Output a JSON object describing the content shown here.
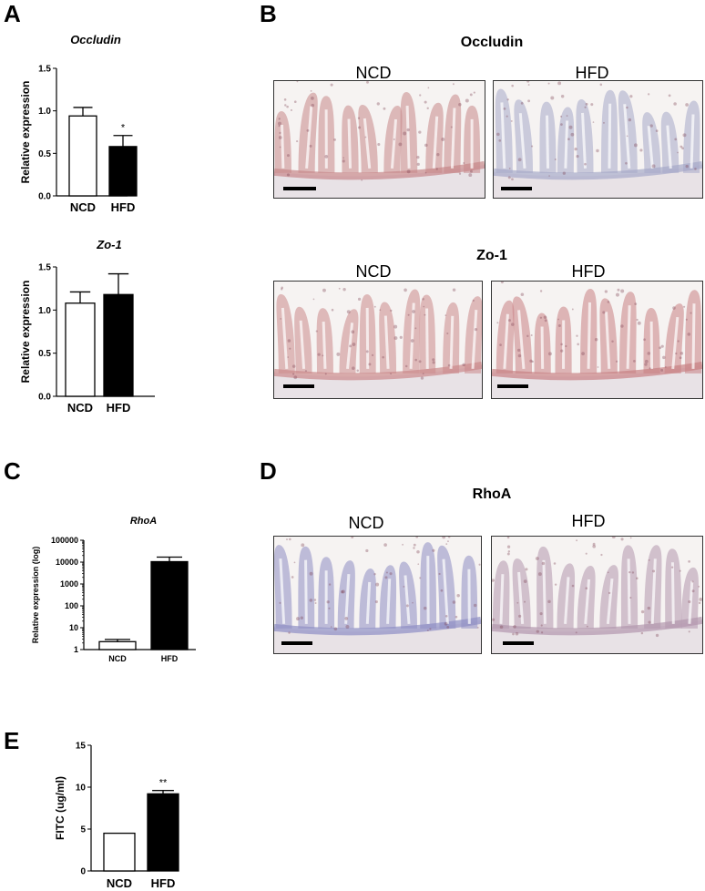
{
  "panels": {
    "A": "A",
    "B": "B",
    "C": "C",
    "D": "D",
    "E": "E"
  },
  "chart_data": [
    {
      "id": "occludin",
      "type": "bar",
      "title": "Occludin",
      "ylabel": "Relative expression",
      "categories": [
        "NCD",
        "HFD"
      ],
      "values": [
        0.94,
        0.58
      ],
      "errors": [
        0.1,
        0.13
      ],
      "annotations": [
        "",
        "*"
      ],
      "ylim": [
        0,
        1.5
      ],
      "yticks": [
        "0.0",
        "0.5",
        "1.0",
        "1.5"
      ],
      "fills": [
        "#ffffff",
        "#000000"
      ]
    },
    {
      "id": "zo1",
      "type": "bar",
      "title": "Zo-1",
      "ylabel": "Relative expression",
      "categories": [
        "NCD",
        "HFD"
      ],
      "values": [
        1.08,
        1.18
      ],
      "errors": [
        0.13,
        0.24
      ],
      "annotations": [
        "",
        ""
      ],
      "ylim": [
        0,
        1.5
      ],
      "yticks": [
        "0.0",
        "0.5",
        "1.0",
        "1.5"
      ],
      "fills": [
        "#ffffff",
        "#000000"
      ]
    },
    {
      "id": "rhoa",
      "type": "bar",
      "title": "RhoA",
      "ylabel": "Relative expression (log)",
      "categories": [
        "NCD",
        "HFD"
      ],
      "values": [
        2.3,
        10500
      ],
      "errors_upper": [
        2.9,
        17000
      ],
      "annotations": [
        "",
        ""
      ],
      "log_scale": true,
      "ylim": [
        1,
        100000
      ],
      "yticks": [
        "1",
        "10",
        "100",
        "1000",
        "10000",
        "100000"
      ],
      "fills": [
        "#ffffff",
        "#000000"
      ]
    },
    {
      "id": "fitc",
      "type": "bar",
      "title": "",
      "ylabel": "FITC (ug/ml)",
      "categories": [
        "NCD",
        "HFD"
      ],
      "values": [
        4.5,
        9.2
      ],
      "errors": [
        0.0,
        0.4
      ],
      "annotations": [
        "",
        "**"
      ],
      "ylim": [
        0,
        15
      ],
      "yticks": [
        "0",
        "5",
        "10",
        "15"
      ],
      "fills": [
        "#ffffff",
        "#000000"
      ]
    }
  ],
  "micrographs": {
    "occludin": {
      "title": "Occludin",
      "left_label": "NCD",
      "right_label": "HFD",
      "left_stain": "#c8888a",
      "right_stain": "#a7a9c9"
    },
    "zo1": {
      "title": "Zo-1",
      "left_label": "NCD",
      "right_label": "HFD",
      "left_stain": "#cc8a8c",
      "right_stain": "#c98184"
    },
    "rhoa": {
      "title": "RhoA",
      "left_label": "NCD",
      "right_label": "HFD",
      "left_stain": "#8f8ec4",
      "right_stain": "#b397ae"
    }
  }
}
